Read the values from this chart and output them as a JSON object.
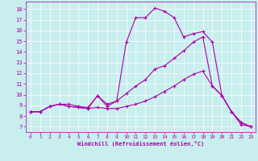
{
  "bg_color": "#c8eeee",
  "line_color": "#aa00aa",
  "xlabel": "Windchill (Refroidissement éolien,°C)",
  "x_ticks": [
    0,
    1,
    2,
    3,
    4,
    5,
    6,
    7,
    8,
    9,
    10,
    11,
    12,
    13,
    14,
    15,
    16,
    17,
    18,
    19,
    20,
    21,
    22,
    23
  ],
  "y_ticks": [
    7,
    8,
    9,
    10,
    11,
    12,
    13,
    14,
    15,
    16,
    17,
    18
  ],
  "ylim": [
    6.5,
    18.7
  ],
  "xlim": [
    -0.5,
    23.5
  ],
  "curve1_y": [
    8.4,
    8.4,
    8.9,
    9.1,
    8.9,
    8.8,
    8.7,
    8.8,
    8.7,
    8.7,
    8.9,
    9.1,
    9.4,
    9.8,
    10.3,
    10.8,
    11.4,
    11.9,
    12.2,
    10.8,
    9.9,
    8.4,
    7.4,
    7.0
  ],
  "curve2_y": [
    8.4,
    8.4,
    8.9,
    9.1,
    9.1,
    8.9,
    8.8,
    9.9,
    9.1,
    9.4,
    10.1,
    10.8,
    11.4,
    12.4,
    12.7,
    13.4,
    14.1,
    14.9,
    15.4,
    10.8,
    9.9,
    8.4,
    7.4,
    7.0
  ],
  "curve3_y": [
    8.4,
    8.4,
    8.9,
    9.1,
    8.9,
    8.8,
    8.7,
    9.9,
    8.9,
    9.4,
    14.9,
    17.2,
    17.2,
    18.1,
    17.8,
    17.2,
    15.4,
    15.7,
    15.9,
    14.9,
    9.9,
    8.4,
    7.2,
    7.0
  ]
}
